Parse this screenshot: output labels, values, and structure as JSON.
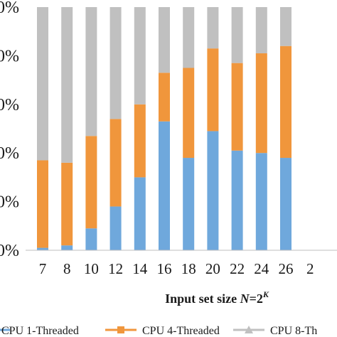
{
  "chart_data": {
    "type": "bar",
    "stacked": true,
    "percent_stacked": true,
    "categories": [
      "7",
      "8",
      "10",
      "12",
      "14",
      "16",
      "18",
      "20",
      "22",
      "24",
      "26",
      "2"
    ],
    "series": [
      {
        "name": "CPU 1-Threaded",
        "color": "#6fa8dc",
        "values": [
          1,
          2,
          9,
          18,
          30,
          53,
          38,
          49,
          41,
          40,
          38,
          0
        ]
      },
      {
        "name": "CPU 4-Threaded",
        "color": "#f0963c",
        "values": [
          36,
          34,
          38,
          36,
          30,
          20,
          37,
          34,
          36,
          41,
          46,
          0
        ]
      },
      {
        "name": "CPU 8-Th",
        "color": "#c0c0c0",
        "values": [
          63,
          64,
          53,
          46,
          40,
          27,
          25,
          17,
          23,
          19,
          16,
          0
        ]
      }
    ],
    "y_tick_labels": [
      "0%",
      "0%",
      "0%",
      "0%",
      "0%",
      "0%"
    ],
    "ylim": [
      0,
      100
    ],
    "xlabel": {
      "main": "Input set size ",
      "var": "N",
      "eq": "=2",
      "exp": "K"
    },
    "legend_position": "bottom",
    "grid": false
  }
}
